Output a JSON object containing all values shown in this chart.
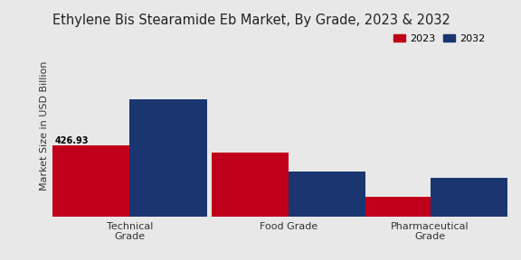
{
  "title": "Ethylene Bis Stearamide Eb Market, By Grade, 2023 & 2032",
  "ylabel": "Market Size in USD Billion",
  "categories": [
    "Technical\nGrade",
    "Food Grade",
    "Pharmaceutical\nGrade"
  ],
  "values_2023": [
    426.93,
    380,
    120
  ],
  "values_2032": [
    700,
    270,
    230
  ],
  "bar_color_2023": "#c0001a",
  "bar_color_2032": "#1a3570",
  "annotation_value": "426.93",
  "background_color": "#e8e8e8",
  "legend_labels": [
    "2023",
    "2032"
  ],
  "bar_width": 0.18,
  "title_fontsize": 10.5,
  "ylabel_fontsize": 8,
  "tick_fontsize": 8
}
